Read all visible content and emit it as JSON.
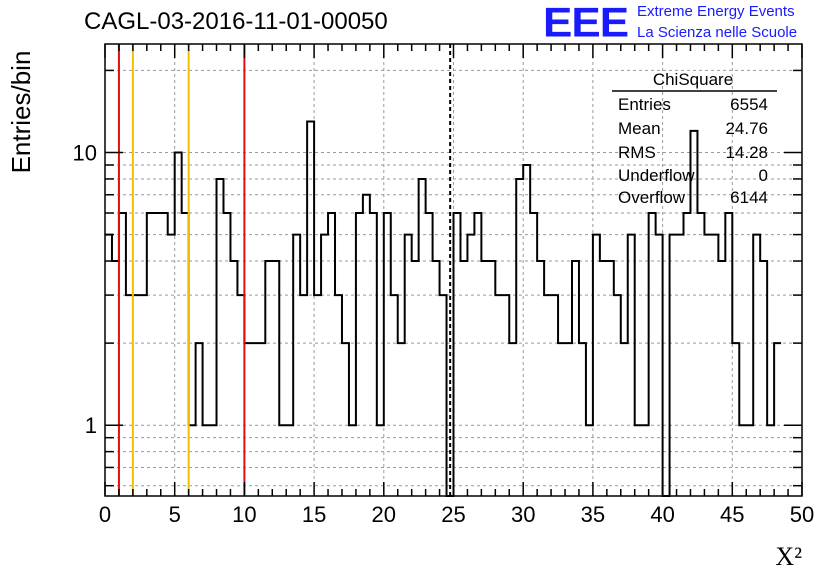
{
  "header": {
    "title": "CAGL-03-2016-11-01-00050",
    "logo_text": "EEE",
    "logo_line1": "Extreme Energy Events",
    "logo_line2": "La Scienza nelle Scuole"
  },
  "stats_box": {
    "name": "ChiSquare",
    "rows": [
      {
        "label": "Entries",
        "value": "6554"
      },
      {
        "label": "Mean",
        "value": "24.76"
      },
      {
        "label": "RMS",
        "value": "14.28"
      },
      {
        "label": "Underflow",
        "value": "0"
      },
      {
        "label": "Overflow",
        "value": "6144"
      }
    ]
  },
  "colors": {
    "line": "#000000",
    "grid": "#9a9a9a",
    "red_marker": "#dd1111",
    "yellow_marker": "#f0c000",
    "logo": "#1a1aff"
  },
  "chart_data": {
    "type": "histogram",
    "xlabel": "X²",
    "ylabel": "Entries/bin",
    "xlim": [
      0,
      50
    ],
    "ylim": [
      0.55,
      25
    ],
    "log_y": true,
    "grid": true,
    "bin_width": 0.5,
    "x_ticks": [
      0,
      5,
      10,
      15,
      20,
      25,
      30,
      35,
      40,
      45,
      50
    ],
    "x_tick_labels": [
      "0",
      "5",
      "10",
      "15",
      "20",
      "25",
      "30",
      "35",
      "40",
      "45",
      "50"
    ],
    "y_ticks": [
      1,
      10
    ],
    "y_tick_labels": [
      "1",
      "10"
    ],
    "bin_values": [
      5,
      4,
      6,
      3,
      3,
      3,
      6,
      6,
      6,
      5,
      10,
      6,
      1,
      2,
      1,
      1,
      8,
      6,
      4,
      3,
      2,
      2,
      2,
      4,
      4,
      1,
      1,
      5,
      3,
      13,
      3,
      5,
      6,
      3,
      2,
      1,
      6,
      7,
      6,
      1,
      6,
      3,
      2,
      5,
      4,
      8,
      6,
      4,
      3,
      0.3,
      6,
      4,
      5,
      6,
      4,
      4,
      3,
      3,
      2,
      8,
      9,
      6,
      4,
      3,
      3,
      2,
      2,
      4,
      2,
      1,
      5,
      4,
      4,
      3,
      2,
      5,
      1,
      1,
      6,
      5,
      0.3,
      5,
      5,
      6,
      12,
      6,
      5,
      5,
      4,
      6,
      2,
      1,
      1,
      5,
      4,
      1,
      2
    ],
    "vertical_markers": [
      {
        "x": 1,
        "color": "red",
        "style": "solid"
      },
      {
        "x": 2,
        "color": "yellow",
        "style": "solid"
      },
      {
        "x": 6,
        "color": "yellow",
        "style": "solid"
      },
      {
        "x": 10,
        "color": "red",
        "style": "solid"
      },
      {
        "x": 24.76,
        "color": "black",
        "style": "dashed"
      }
    ]
  }
}
